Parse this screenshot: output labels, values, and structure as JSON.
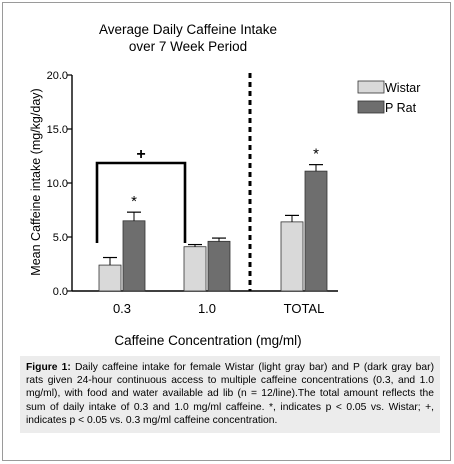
{
  "chart_data": {
    "type": "bar",
    "title_lines": [
      "Average Daily Caffeine Intake",
      "over 7 Week Period"
    ],
    "xlabel": "Caffeine Concentration (mg/ml)",
    "ylabel": "Mean Caffeine intake (mg/kg/day)",
    "ylim": [
      0,
      20
    ],
    "yticks": [
      "0.0",
      "5.0",
      "10.0",
      "15.0",
      "20.0"
    ],
    "categories": [
      "0.3",
      "1.0",
      "TOTAL"
    ],
    "series": [
      {
        "name": "Wistar",
        "values": [
          2.4,
          4.1,
          6.4
        ],
        "errors": [
          0.7,
          0.2,
          0.6
        ],
        "color": "#d9d9d9"
      },
      {
        "name": "P Rat",
        "values": [
          6.5,
          4.6,
          11.1
        ],
        "errors": [
          0.8,
          0.3,
          0.6
        ],
        "color": "#6e6e6e"
      }
    ],
    "annotations": {
      "significance_markers": [
        {
          "category": "0.3",
          "series": "P Rat",
          "symbol": "*"
        },
        {
          "category": "TOTAL",
          "series": "P Rat",
          "symbol": "*"
        }
      ],
      "bracket_symbol": "+",
      "bracket_between": [
        "0.3",
        "1.0"
      ]
    },
    "divider": "dashed line between 1.0 and TOTAL",
    "legend_position": "top-right",
    "grid": false
  },
  "caption": {
    "label": "Figure 1:",
    "text": "Daily caffeine intake for female Wistar (light gray bar) and P (dark gray bar) rats given 24-hour continuous access to multiple caffeine concentrations (0.3, and 1.0 mg/ml), with food and water available ad lib (n = 12/line).The total amount reflects the sum of daily intake of 0.3 and 1.0 mg/ml caffeine. *, indicates p < 0.05 vs. Wistar; +, indicates p < 0.05 vs. 0.3 mg/ml caffeine concentration."
  }
}
